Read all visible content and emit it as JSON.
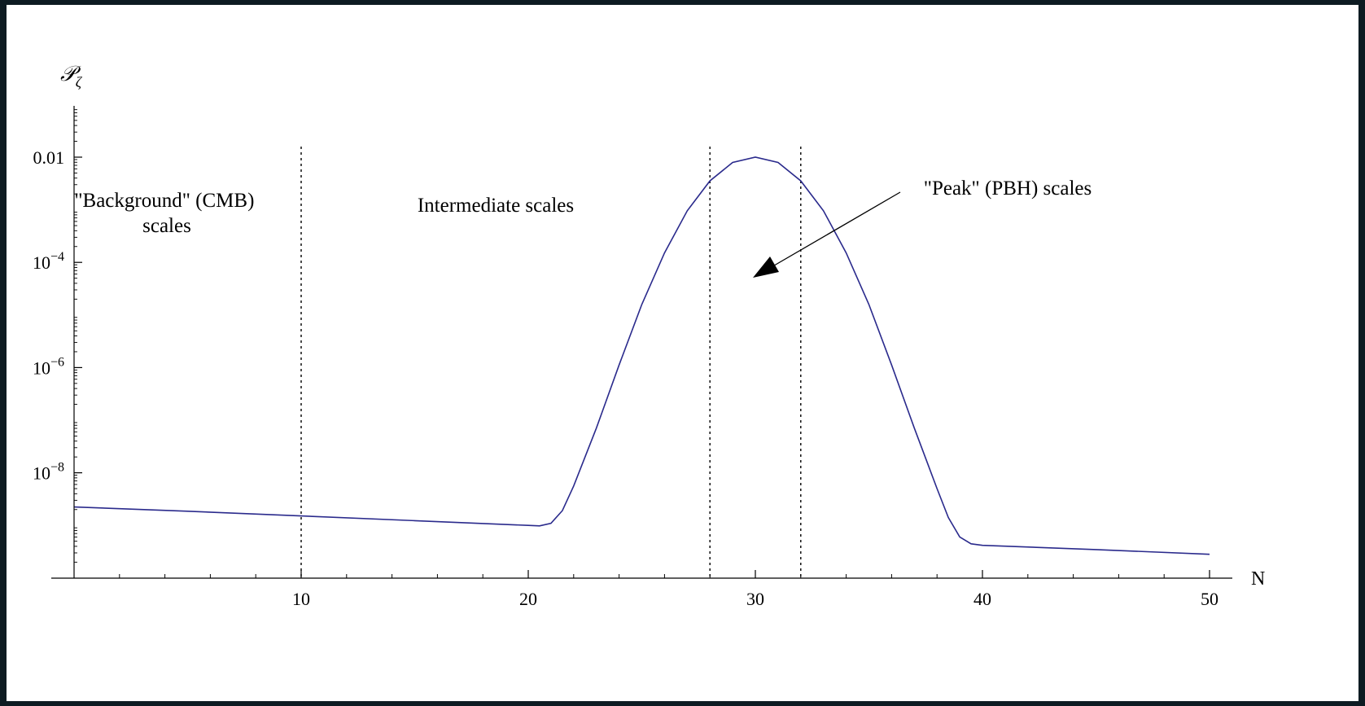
{
  "chart_data": {
    "type": "line",
    "title": "",
    "xlabel": "N",
    "ylabel": "𝒫",
    "ylabel_subscript": "ζ",
    "y_scale": "log",
    "xlim": [
      0,
      51
    ],
    "ylim_log10": [
      -10,
      0.5
    ],
    "grid": false,
    "x_ticks": [
      {
        "value": 10,
        "label": "10"
      },
      {
        "value": 20,
        "label": "20"
      },
      {
        "value": 30,
        "label": "30"
      },
      {
        "value": 40,
        "label": "40"
      },
      {
        "value": 50,
        "label": "50"
      }
    ],
    "y_ticks": [
      {
        "log10": -2,
        "base": "0.01",
        "exp": ""
      },
      {
        "log10": -4,
        "base": "10",
        "exp": "−4"
      },
      {
        "log10": -6,
        "base": "10",
        "exp": "−6"
      },
      {
        "log10": -8,
        "base": "10",
        "exp": "−8"
      }
    ],
    "series": [
      {
        "color": "#2a2a8c",
        "points": [
          [
            0,
            -8.65
          ],
          [
            5,
            -8.73
          ],
          [
            10,
            -8.82
          ],
          [
            15,
            -8.91
          ],
          [
            20,
            -9.0
          ],
          [
            20.5,
            -9.01
          ],
          [
            21,
            -8.96
          ],
          [
            21.5,
            -8.72
          ],
          [
            22,
            -8.25
          ],
          [
            23,
            -7.15
          ],
          [
            24,
            -5.95
          ],
          [
            25,
            -4.8
          ],
          [
            26,
            -3.82
          ],
          [
            27,
            -3.02
          ],
          [
            28,
            -2.45
          ],
          [
            29,
            -2.1
          ],
          [
            30,
            -2.0
          ],
          [
            31,
            -2.1
          ],
          [
            32,
            -2.45
          ],
          [
            33,
            -3.02
          ],
          [
            34,
            -3.82
          ],
          [
            35,
            -4.8
          ],
          [
            36,
            -5.95
          ],
          [
            37,
            -7.15
          ],
          [
            38,
            -8.3
          ],
          [
            38.5,
            -8.85
          ],
          [
            39,
            -9.22
          ],
          [
            39.5,
            -9.35
          ],
          [
            40,
            -9.38
          ],
          [
            45,
            -9.46
          ],
          [
            50,
            -9.55
          ]
        ]
      }
    ],
    "vertical_lines": [
      10,
      28,
      32
    ],
    "annotations": [
      {
        "lines": [
          "\"Background\" (CMB)",
          "scales"
        ]
      },
      {
        "lines": [
          "Intermediate scales"
        ]
      },
      {
        "lines": [
          "\"Peak\" (PBH) scales"
        ]
      }
    ]
  }
}
